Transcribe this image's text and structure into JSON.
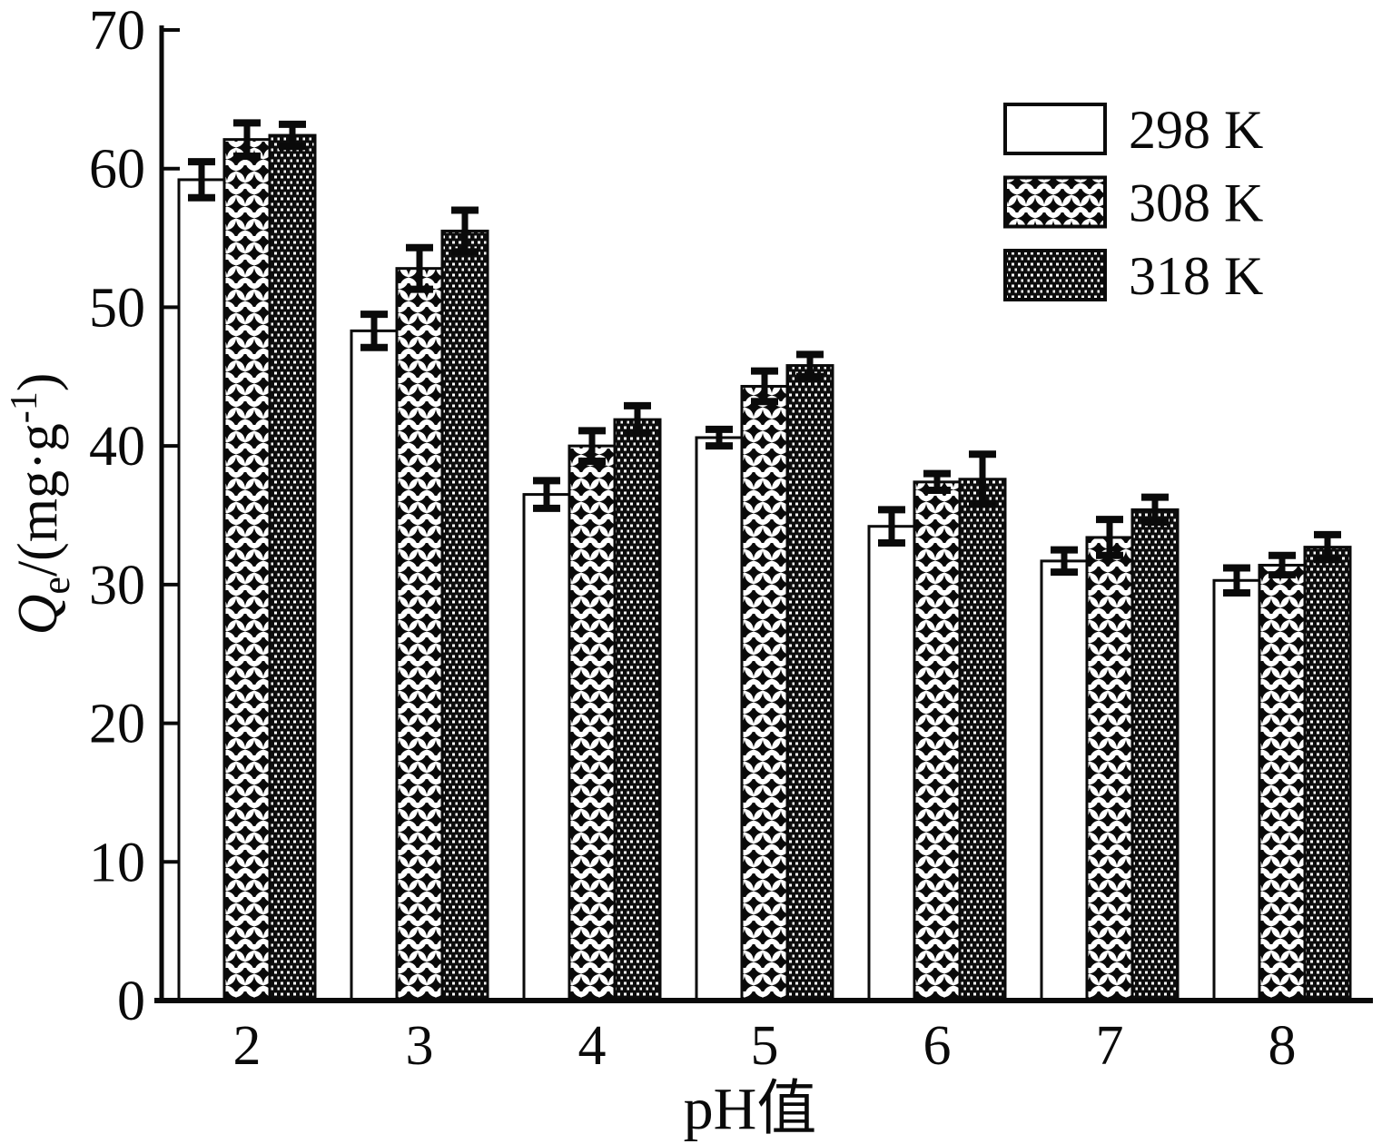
{
  "chart_data": {
    "type": "bar",
    "title": "",
    "xlabel": "pH值",
    "ylabel": "Qe/(mg·g⁻¹)",
    "ylabel_parts": {
      "symbol": "Q",
      "subscript": "e",
      "unit_open": "/(mg·g",
      "exponent": "-1",
      "unit_close": ")"
    },
    "categories": [
      "2",
      "3",
      "4",
      "5",
      "6",
      "7",
      "8"
    ],
    "series": [
      {
        "name": "298 K",
        "pattern": "plain",
        "values": [
          59.2,
          48.3,
          36.5,
          40.6,
          34.2,
          31.7,
          30.3
        ],
        "errors": [
          1.3,
          1.2,
          1.0,
          0.6,
          1.2,
          0.8,
          0.9
        ]
      },
      {
        "name": "308 K",
        "pattern": "diamond",
        "values": [
          62.1,
          52.8,
          40.0,
          44.3,
          37.4,
          33.4,
          31.4
        ],
        "errors": [
          1.2,
          1.5,
          1.1,
          1.1,
          0.6,
          1.3,
          0.7
        ]
      },
      {
        "name": "318 K",
        "pattern": "dots",
        "values": [
          62.4,
          55.5,
          41.9,
          45.8,
          37.6,
          35.4,
          32.7
        ],
        "errors": [
          0.8,
          1.5,
          1.0,
          0.8,
          1.8,
          0.9,
          0.9
        ]
      }
    ],
    "ylim": [
      0,
      70
    ],
    "yticks": [
      0,
      10,
      20,
      30,
      40,
      50,
      60,
      70
    ],
    "error_bars": true,
    "grid": false,
    "legend_position": "upper-right",
    "colors": {
      "ink": "#0a0a0a",
      "background": "#ffffff"
    }
  }
}
